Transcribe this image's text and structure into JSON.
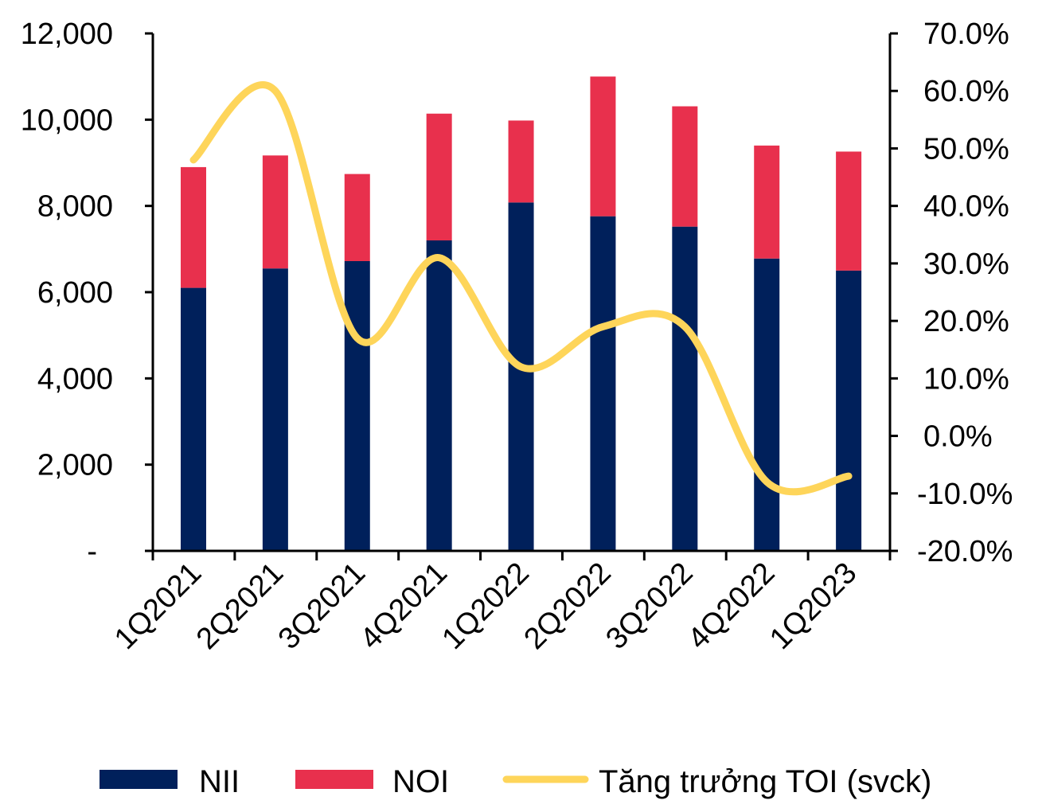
{
  "chart_data": {
    "type": "bar",
    "stacked": true,
    "categories": [
      "1Q2021",
      "2Q2021",
      "3Q2021",
      "4Q2021",
      "1Q2022",
      "2Q2022",
      "3Q2022",
      "4Q2022",
      "1Q2023"
    ],
    "series": [
      {
        "name": "NII",
        "axis": "left",
        "color": "#00205b",
        "values": [
          6100,
          6550,
          6720,
          7200,
          8080,
          7760,
          7520,
          6780,
          6500
        ]
      },
      {
        "name": "NOI",
        "axis": "left",
        "color": "#e8304d",
        "values": [
          2800,
          2620,
          2020,
          2940,
          1900,
          3240,
          2790,
          2620,
          2760
        ]
      },
      {
        "name": "Tăng trưởng TOI (svck)",
        "type": "line",
        "axis": "right",
        "color": "#fed55a",
        "values": [
          0.48,
          0.6,
          0.17,
          0.31,
          0.12,
          0.19,
          0.19,
          -0.08,
          -0.07
        ]
      }
    ],
    "y_left": {
      "ylim": [
        0,
        12000
      ],
      "ticks": [
        0,
        2000,
        4000,
        6000,
        8000,
        10000,
        12000
      ],
      "tick_labels": [
        "-",
        "2,000",
        "4,000",
        "6,000",
        "8,000",
        "10,000",
        "12,000"
      ]
    },
    "y_right": {
      "ylim": [
        -0.2,
        0.7
      ],
      "ticks": [
        -0.2,
        -0.1,
        0,
        0.1,
        0.2,
        0.3,
        0.4,
        0.5,
        0.6,
        0.7
      ],
      "tick_labels": [
        "-20.0%",
        "-10.0%",
        "0.0%",
        "10.0%",
        "20.0%",
        "30.0%",
        "40.0%",
        "50.0%",
        "60.0%",
        "70.0%"
      ]
    },
    "title": "",
    "xlabel": "",
    "ylabel": "",
    "grid": false,
    "legend": {
      "position": "bottom",
      "items": [
        {
          "label": "NII",
          "symbol": "box",
          "color": "#00205b"
        },
        {
          "label": "NOI",
          "symbol": "box",
          "color": "#e8304d"
        },
        {
          "label": "Tăng trưởng TOI (svck)",
          "symbol": "line",
          "color": "#fed55a"
        }
      ]
    }
  }
}
